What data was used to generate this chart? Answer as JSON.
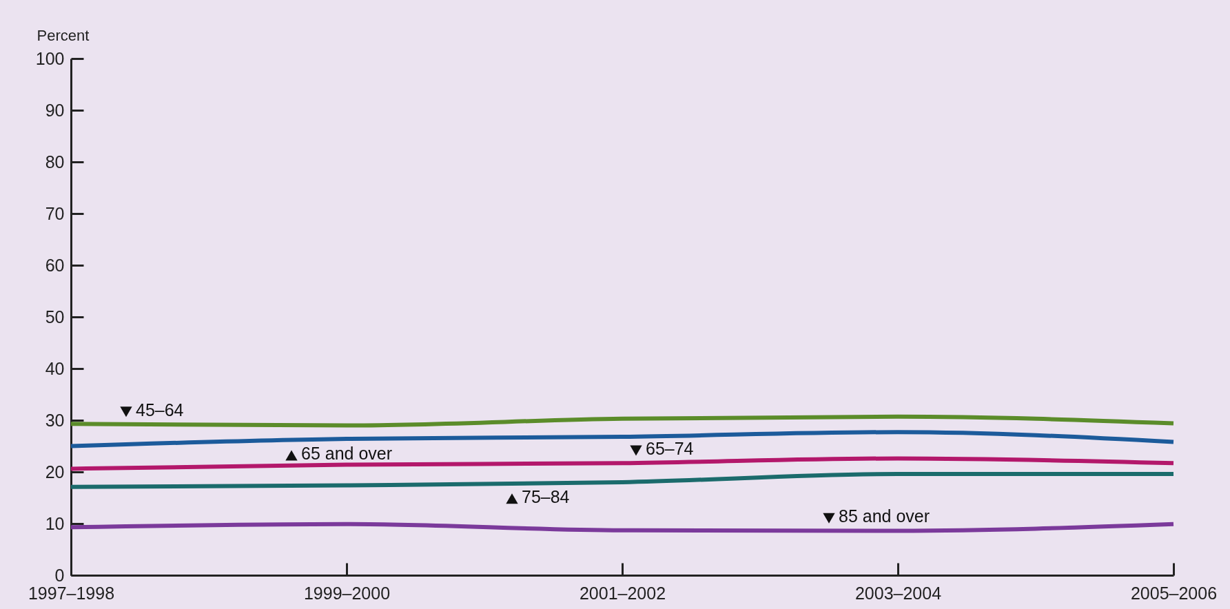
{
  "chart_data": {
    "type": "line",
    "ylabel": "Percent",
    "categories": [
      "1997–1998",
      "1999–2000",
      "2001–2002",
      "2003–2004",
      "2005–2006"
    ],
    "ylim": [
      0,
      100
    ],
    "yticks": [
      0,
      10,
      20,
      30,
      40,
      50,
      60,
      70,
      80,
      90,
      100
    ],
    "grid": false,
    "legend": false,
    "series": [
      {
        "name": "45–64",
        "color": "#5b8c2a",
        "values": [
          29.3,
          29,
          30.3,
          30.7,
          29.4
        ]
      },
      {
        "name": "65 and over",
        "color": "#1c5b9b",
        "values": [
          25,
          26.4,
          26.8,
          27.7,
          25.8
        ]
      },
      {
        "name": "65–74",
        "color": "#b3186b",
        "values": [
          20.6,
          21.4,
          21.7,
          22.6,
          21.7
        ]
      },
      {
        "name": "75–84",
        "color": "#1b6b6c",
        "values": [
          17.1,
          17.4,
          18,
          19.6,
          19.6
        ]
      },
      {
        "name": "85 and over",
        "color": "#7b3a9b",
        "values": [
          9.3,
          9.9,
          8.7,
          8.6,
          9.9
        ]
      }
    ]
  }
}
